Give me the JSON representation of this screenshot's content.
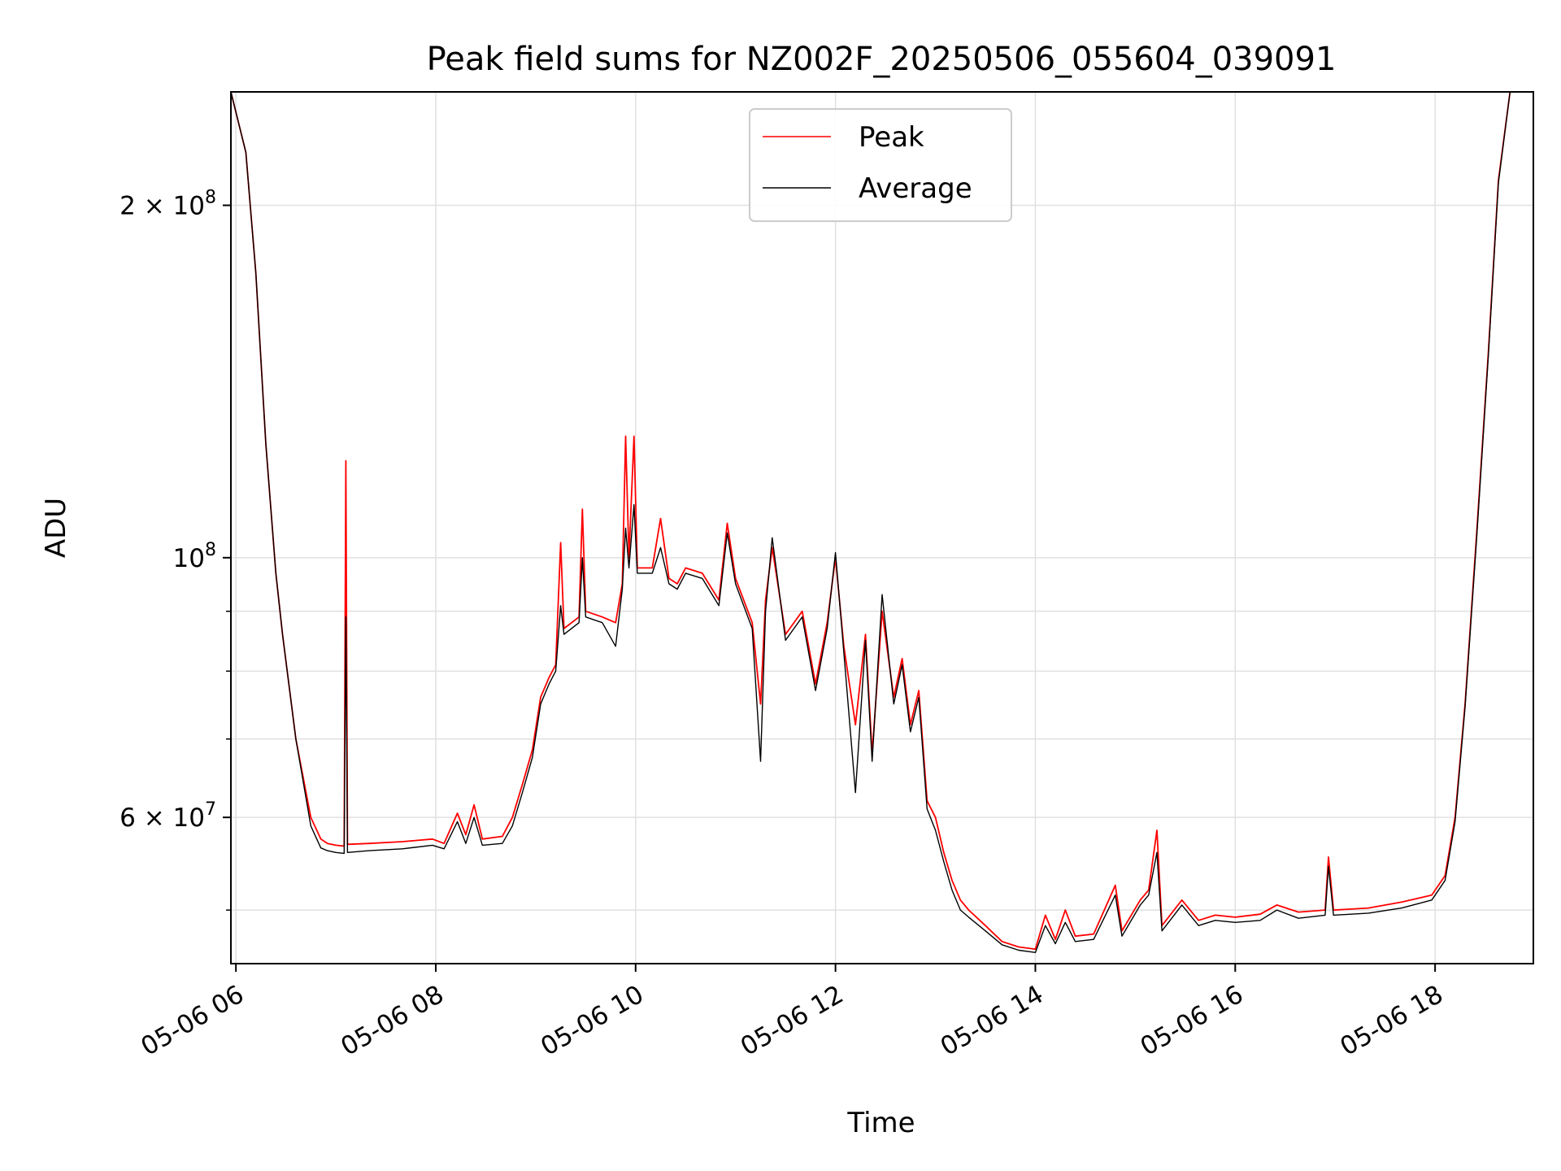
{
  "chart_data": {
    "type": "line",
    "title": "Peak field sums for NZ002F_20250506_055604_039091",
    "xlabel": "Time",
    "ylabel": "ADU",
    "y_scale": "log",
    "ylim": [
      45000000,
      250000000
    ],
    "xlim": [
      "05-06 05:57",
      "05-06 18:59"
    ],
    "grid": true,
    "legend_position": "top-center",
    "x_ticks": [
      {
        "x": "05-06 06:00",
        "label": "05-06 06"
      },
      {
        "x": "05-06 08:00",
        "label": "05-06 08"
      },
      {
        "x": "05-06 10:00",
        "label": "05-06 10"
      },
      {
        "x": "05-06 12:00",
        "label": "05-06 12"
      },
      {
        "x": "05-06 14:00",
        "label": "05-06 14"
      },
      {
        "x": "05-06 16:00",
        "label": "05-06 16"
      },
      {
        "x": "05-06 18:00",
        "label": "05-06 18"
      }
    ],
    "y_major_ticks": [
      {
        "y": 60000000,
        "base": "6",
        "times": "×",
        "exp_base": "10",
        "exp": "7"
      },
      {
        "y": 100000000,
        "base": "",
        "times": "",
        "exp_base": "10",
        "exp": "8"
      },
      {
        "y": 200000000,
        "base": "2",
        "times": "×",
        "exp_base": "10",
        "exp": "8"
      }
    ],
    "y_minor_ticks": [
      50000000,
      70000000,
      80000000,
      90000000
    ],
    "series": [
      {
        "name": "Peak",
        "color": "#ff0000",
        "points": [
          [
            "05-06 05:57",
            250000000
          ],
          [
            "05-06 06:06",
            222000000
          ],
          [
            "05-06 06:12",
            175000000
          ],
          [
            "05-06 06:18",
            125000000
          ],
          [
            "05-06 06:24",
            97000000
          ],
          [
            "05-06 06:28",
            86000000
          ],
          [
            "05-06 06:36",
            70000000
          ],
          [
            "05-06 06:45",
            60000000
          ],
          [
            "05-06 06:51",
            57500000
          ],
          [
            "05-06 06:55",
            57000000
          ],
          [
            "05-06 07:00",
            56800000
          ],
          [
            "05-06 07:05",
            56700000
          ],
          [
            "05-06 07:06",
            121000000
          ],
          [
            "05-06 07:07",
            56900000
          ],
          [
            "05-06 07:20",
            57000000
          ],
          [
            "05-06 07:40",
            57200000
          ],
          [
            "05-06 07:58",
            57500000
          ],
          [
            "05-06 08:05",
            57000000
          ],
          [
            "05-06 08:13",
            60500000
          ],
          [
            "05-06 08:18",
            58000000
          ],
          [
            "05-06 08:23",
            61500000
          ],
          [
            "05-06 08:28",
            57500000
          ],
          [
            "05-06 08:40",
            57800000
          ],
          [
            "05-06 08:46",
            60000000
          ],
          [
            "05-06 08:52",
            64000000
          ],
          [
            "05-06 08:58",
            68500000
          ],
          [
            "05-06 09:03",
            76000000
          ],
          [
            "05-06 09:08",
            79000000
          ],
          [
            "05-06 09:12",
            81000000
          ],
          [
            "05-06 09:15",
            103000000
          ],
          [
            "05-06 09:17",
            87000000
          ],
          [
            "05-06 09:26",
            89000000
          ],
          [
            "05-06 09:28",
            110000000
          ],
          [
            "05-06 09:30",
            90000000
          ],
          [
            "05-06 09:40",
            89000000
          ],
          [
            "05-06 09:48",
            88000000
          ],
          [
            "05-06 09:52",
            95000000
          ],
          [
            "05-06 09:54",
            127000000
          ],
          [
            "05-06 09:56",
            100000000
          ],
          [
            "05-06 09:59",
            127000000
          ],
          [
            "05-06 10:01",
            98000000
          ],
          [
            "05-06 10:10",
            98000000
          ],
          [
            "05-06 10:15",
            108000000
          ],
          [
            "05-06 10:20",
            96000000
          ],
          [
            "05-06 10:25",
            95000000
          ],
          [
            "05-06 10:30",
            98000000
          ],
          [
            "05-06 10:40",
            97000000
          ],
          [
            "05-06 10:50",
            92000000
          ],
          [
            "05-06 10:55",
            107000000
          ],
          [
            "05-06 11:00",
            96000000
          ],
          [
            "05-06 11:10",
            88000000
          ],
          [
            "05-06 11:15",
            75000000
          ],
          [
            "05-06 11:18",
            92000000
          ],
          [
            "05-06 11:22",
            102000000
          ],
          [
            "05-06 11:30",
            86000000
          ],
          [
            "05-06 11:40",
            90000000
          ],
          [
            "05-06 11:48",
            78000000
          ],
          [
            "05-06 11:55",
            88000000
          ],
          [
            "05-06 12:00",
            100000000
          ],
          [
            "05-06 12:05",
            84000000
          ],
          [
            "05-06 12:12",
            72000000
          ],
          [
            "05-06 12:18",
            86000000
          ],
          [
            "05-06 12:22",
            68000000
          ],
          [
            "05-06 12:28",
            90000000
          ],
          [
            "05-06 12:35",
            76000000
          ],
          [
            "05-06 12:40",
            82000000
          ],
          [
            "05-06 12:45",
            72000000
          ],
          [
            "05-06 12:50",
            77000000
          ],
          [
            "05-06 12:55",
            62000000
          ],
          [
            "05-06 13:00",
            60000000
          ],
          [
            "05-06 13:05",
            56000000
          ],
          [
            "05-06 13:10",
            53000000
          ],
          [
            "05-06 13:15",
            51000000
          ],
          [
            "05-06 13:20",
            50000000
          ],
          [
            "05-06 13:30",
            48500000
          ],
          [
            "05-06 13:40",
            47000000
          ],
          [
            "05-06 13:50",
            46500000
          ],
          [
            "05-06 14:00",
            46300000
          ],
          [
            "05-06 14:06",
            49500000
          ],
          [
            "05-06 14:12",
            47200000
          ],
          [
            "05-06 14:18",
            50000000
          ],
          [
            "05-06 14:24",
            47500000
          ],
          [
            "05-06 14:35",
            47700000
          ],
          [
            "05-06 14:48",
            52500000
          ],
          [
            "05-06 14:52",
            48000000
          ],
          [
            "05-06 15:03",
            51000000
          ],
          [
            "05-06 15:08",
            52000000
          ],
          [
            "05-06 15:13",
            58500000
          ],
          [
            "05-06 15:16",
            48500000
          ],
          [
            "05-06 15:28",
            51000000
          ],
          [
            "05-06 15:38",
            49000000
          ],
          [
            "05-06 15:48",
            49500000
          ],
          [
            "05-06 16:00",
            49300000
          ],
          [
            "05-06 16:15",
            49600000
          ],
          [
            "05-06 16:25",
            50500000
          ],
          [
            "05-06 16:38",
            49800000
          ],
          [
            "05-06 16:54",
            50000000
          ],
          [
            "05-06 16:56",
            55500000
          ],
          [
            "05-06 16:59",
            50000000
          ],
          [
            "05-06 17:20",
            50200000
          ],
          [
            "05-06 17:40",
            50800000
          ],
          [
            "05-06 17:58",
            51500000
          ],
          [
            "05-06 18:06",
            53500000
          ],
          [
            "05-06 18:12",
            60000000
          ],
          [
            "05-06 18:18",
            75000000
          ],
          [
            "05-06 18:25",
            105000000
          ],
          [
            "05-06 18:32",
            150000000
          ],
          [
            "05-06 18:38",
            210000000
          ],
          [
            "05-06 18:45",
            250000000
          ],
          [
            "05-06 18:59",
            250000000
          ]
        ]
      },
      {
        "name": "Average",
        "color": "#000000",
        "points": [
          [
            "05-06 05:57",
            250000000
          ],
          [
            "05-06 06:06",
            222000000
          ],
          [
            "05-06 06:12",
            175000000
          ],
          [
            "05-06 06:18",
            125000000
          ],
          [
            "05-06 06:24",
            97000000
          ],
          [
            "05-06 06:28",
            86000000
          ],
          [
            "05-06 06:36",
            70000000
          ],
          [
            "05-06 06:45",
            59000000
          ],
          [
            "05-06 06:51",
            56500000
          ],
          [
            "05-06 06:55",
            56200000
          ],
          [
            "05-06 07:00",
            56000000
          ],
          [
            "05-06 07:05",
            55900000
          ],
          [
            "05-06 07:06",
            89000000
          ],
          [
            "05-06 07:07",
            56000000
          ],
          [
            "05-06 07:20",
            56200000
          ],
          [
            "05-06 07:40",
            56400000
          ],
          [
            "05-06 07:58",
            56800000
          ],
          [
            "05-06 08:05",
            56400000
          ],
          [
            "05-06 08:13",
            59500000
          ],
          [
            "05-06 08:18",
            57000000
          ],
          [
            "05-06 08:23",
            60000000
          ],
          [
            "05-06 08:28",
            56800000
          ],
          [
            "05-06 08:40",
            57000000
          ],
          [
            "05-06 08:46",
            59000000
          ],
          [
            "05-06 08:52",
            63000000
          ],
          [
            "05-06 08:58",
            67500000
          ],
          [
            "05-06 09:03",
            75000000
          ],
          [
            "05-06 09:08",
            78000000
          ],
          [
            "05-06 09:12",
            80000000
          ],
          [
            "05-06 09:15",
            91000000
          ],
          [
            "05-06 09:17",
            86000000
          ],
          [
            "05-06 09:26",
            88000000
          ],
          [
            "05-06 09:28",
            100000000
          ],
          [
            "05-06 09:30",
            89000000
          ],
          [
            "05-06 09:40",
            88000000
          ],
          [
            "05-06 09:48",
            84000000
          ],
          [
            "05-06 09:52",
            94000000
          ],
          [
            "05-06 09:54",
            106000000
          ],
          [
            "05-06 09:56",
            98000000
          ],
          [
            "05-06 09:59",
            111000000
          ],
          [
            "05-06 10:01",
            97000000
          ],
          [
            "05-06 10:10",
            97000000
          ],
          [
            "05-06 10:15",
            102000000
          ],
          [
            "05-06 10:20",
            95000000
          ],
          [
            "05-06 10:25",
            94000000
          ],
          [
            "05-06 10:30",
            97000000
          ],
          [
            "05-06 10:40",
            96000000
          ],
          [
            "05-06 10:50",
            91000000
          ],
          [
            "05-06 10:55",
            105000000
          ],
          [
            "05-06 11:00",
            95000000
          ],
          [
            "05-06 11:10",
            87000000
          ],
          [
            "05-06 11:15",
            67000000
          ],
          [
            "05-06 11:18",
            90000000
          ],
          [
            "05-06 11:22",
            104000000
          ],
          [
            "05-06 11:30",
            85000000
          ],
          [
            "05-06 11:40",
            89000000
          ],
          [
            "05-06 11:48",
            77000000
          ],
          [
            "05-06 11:55",
            87000000
          ],
          [
            "05-06 12:00",
            101000000
          ],
          [
            "05-06 12:05",
            83000000
          ],
          [
            "05-06 12:12",
            63000000
          ],
          [
            "05-06 12:18",
            85000000
          ],
          [
            "05-06 12:22",
            67000000
          ],
          [
            "05-06 12:28",
            93000000
          ],
          [
            "05-06 12:35",
            75000000
          ],
          [
            "05-06 12:40",
            81000000
          ],
          [
            "05-06 12:45",
            71000000
          ],
          [
            "05-06 12:50",
            76000000
          ],
          [
            "05-06 12:55",
            61000000
          ],
          [
            "05-06 13:00",
            58500000
          ],
          [
            "05-06 13:05",
            55000000
          ],
          [
            "05-06 13:10",
            52000000
          ],
          [
            "05-06 13:15",
            50000000
          ],
          [
            "05-06 13:20",
            49300000
          ],
          [
            "05-06 13:30",
            48000000
          ],
          [
            "05-06 13:40",
            46700000
          ],
          [
            "05-06 13:50",
            46200000
          ],
          [
            "05-06 14:00",
            46000000
          ],
          [
            "05-06 14:06",
            48500000
          ],
          [
            "05-06 14:12",
            46800000
          ],
          [
            "05-06 14:18",
            48800000
          ],
          [
            "05-06 14:24",
            47000000
          ],
          [
            "05-06 14:35",
            47200000
          ],
          [
            "05-06 14:48",
            51500000
          ],
          [
            "05-06 14:52",
            47500000
          ],
          [
            "05-06 15:03",
            50500000
          ],
          [
            "05-06 15:08",
            51500000
          ],
          [
            "05-06 15:13",
            56000000
          ],
          [
            "05-06 15:16",
            48000000
          ],
          [
            "05-06 15:28",
            50500000
          ],
          [
            "05-06 15:38",
            48500000
          ],
          [
            "05-06 15:48",
            49000000
          ],
          [
            "05-06 16:00",
            48800000
          ],
          [
            "05-06 16:15",
            49000000
          ],
          [
            "05-06 16:25",
            50000000
          ],
          [
            "05-06 16:38",
            49200000
          ],
          [
            "05-06 16:54",
            49500000
          ],
          [
            "05-06 16:56",
            54500000
          ],
          [
            "05-06 16:59",
            49500000
          ],
          [
            "05-06 17:20",
            49700000
          ],
          [
            "05-06 17:40",
            50200000
          ],
          [
            "05-06 17:58",
            51000000
          ],
          [
            "05-06 18:06",
            53000000
          ],
          [
            "05-06 18:12",
            59500000
          ],
          [
            "05-06 18:18",
            74500000
          ],
          [
            "05-06 18:25",
            104000000
          ],
          [
            "05-06 18:32",
            149000000
          ],
          [
            "05-06 18:38",
            209000000
          ],
          [
            "05-06 18:45",
            250000000
          ],
          [
            "05-06 18:59",
            250000000
          ]
        ]
      }
    ]
  },
  "colors": {
    "grid": "#e0e0e0",
    "axes": "#000000",
    "legend_border": "#cccccc",
    "background": "#ffffff"
  }
}
